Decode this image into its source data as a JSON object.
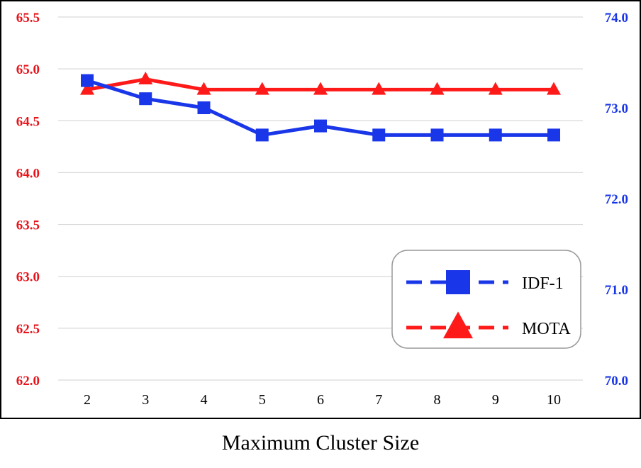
{
  "chart_data": {
    "type": "line",
    "xlabel": "Maximum Cluster Size",
    "categories": [
      "2",
      "3",
      "4",
      "5",
      "6",
      "7",
      "8",
      "9",
      "10"
    ],
    "y_left": {
      "ylim": [
        62.0,
        65.5
      ],
      "ticks": [
        "62.0",
        "62.5",
        "63.0",
        "63.5",
        "64.0",
        "64.5",
        "65.0",
        "65.5"
      ],
      "color": "#e8141b"
    },
    "y_right": {
      "ylim": [
        70.0,
        74.0
      ],
      "ticks": [
        "70.0",
        "71.0",
        "72.0",
        "73.0",
        "74.0"
      ],
      "color": "#1936e8"
    },
    "grid": true,
    "legend_position": "lower-right",
    "series": [
      {
        "name": "IDF-1",
        "axis": "right",
        "marker": "square",
        "color": "#1936e8",
        "values": [
          73.3,
          73.1,
          73.0,
          72.7,
          72.8,
          72.7,
          72.7,
          72.7,
          72.7
        ]
      },
      {
        "name": "MOTA",
        "axis": "left",
        "marker": "triangle",
        "color": "#ff1a1a",
        "values": [
          64.8,
          64.9,
          64.8,
          64.8,
          64.8,
          64.8,
          64.8,
          64.8,
          64.8
        ]
      }
    ]
  }
}
